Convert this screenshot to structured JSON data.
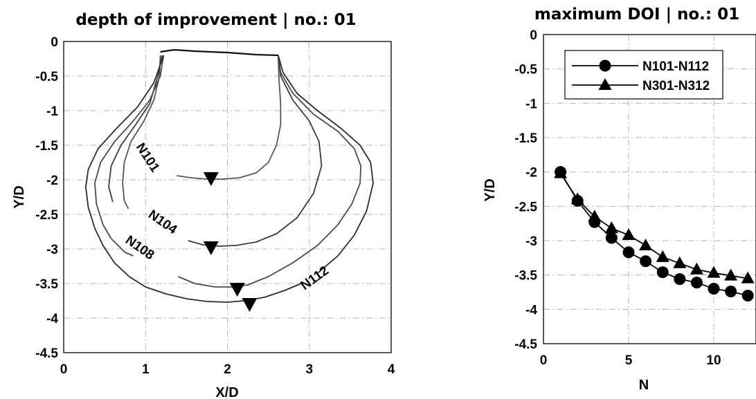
{
  "chart_data": [
    {
      "type": "line",
      "title": "depth of improvement | no.: 01",
      "xlabel": "X/D",
      "ylabel": "Y/D",
      "xlim": [
        0,
        4
      ],
      "ylim": [
        -4.5,
        0
      ],
      "xticks": [
        "0",
        "1",
        "2",
        "3",
        "4"
      ],
      "yticks": [
        "0",
        "-0.5",
        "-1",
        "-1.5",
        "-2",
        "-2.5",
        "-3",
        "-3.5",
        "-4",
        "-4.5"
      ],
      "grid": true,
      "top_line": [
        [
          1.18,
          -0.15
        ],
        [
          1.35,
          -0.12
        ],
        [
          1.6,
          -0.14
        ],
        [
          2.0,
          -0.16
        ],
        [
          2.35,
          -0.19
        ],
        [
          2.62,
          -0.2
        ]
      ],
      "series": [
        {
          "name": "N101",
          "color": "#555555",
          "x": [
            1.18,
            1.17,
            1.1,
            0.98,
            0.82,
            0.74,
            0.72,
            0.74,
            0.79
          ],
          "y": [
            -0.2,
            -0.5,
            -0.85,
            -1.15,
            -1.45,
            -1.75,
            -2.05,
            -2.3,
            -2.42
          ],
          "x2": [
            1.38,
            1.55,
            1.75,
            1.95,
            2.15,
            2.35,
            2.5,
            2.6,
            2.65,
            2.65,
            2.63,
            2.62
          ],
          "y2": [
            -1.94,
            -1.97,
            -1.99,
            -1.99,
            -1.97,
            -1.9,
            -1.75,
            -1.5,
            -1.2,
            -0.9,
            -0.55,
            -0.2
          ],
          "min": {
            "x": 1.8,
            "y": -2.0
          }
        },
        {
          "name": "N104",
          "color": "#3a3a3a",
          "x": [
            1.2,
            1.15,
            1.05,
            0.88,
            0.7,
            0.58,
            0.55,
            0.6
          ],
          "y": [
            -0.2,
            -0.5,
            -0.9,
            -1.2,
            -1.5,
            -1.8,
            -2.1,
            -2.32
          ],
          "x2": [
            1.52,
            1.7,
            1.9,
            2.1,
            2.35,
            2.6,
            2.85,
            3.05,
            3.15,
            3.12,
            3.0,
            2.8,
            2.65,
            2.62
          ],
          "y2": [
            -2.88,
            -2.94,
            -2.96,
            -2.95,
            -2.9,
            -2.78,
            -2.55,
            -2.2,
            -1.8,
            -1.45,
            -1.15,
            -0.85,
            -0.5,
            -0.2
          ],
          "min": {
            "x": 1.8,
            "y": -3.0
          }
        },
        {
          "name": "N108",
          "color": "#4a4a4a",
          "x": [
            1.22,
            1.18,
            1.05,
            0.85,
            0.62,
            0.45,
            0.38,
            0.4,
            0.48,
            0.58,
            0.75,
            0.85
          ],
          "y": [
            -0.2,
            -0.5,
            -0.85,
            -1.15,
            -1.45,
            -1.75,
            -2.05,
            -2.35,
            -2.65,
            -2.85,
            -3.05,
            -3.1
          ],
          "x2": [
            1.4,
            1.6,
            1.85,
            2.05,
            2.25,
            2.5,
            2.8,
            3.1,
            3.35,
            3.52,
            3.62,
            3.63,
            3.55,
            3.35,
            3.05,
            2.8,
            2.65,
            2.62
          ],
          "y2": [
            -3.4,
            -3.5,
            -3.55,
            -3.55,
            -3.52,
            -3.4,
            -3.2,
            -2.95,
            -2.65,
            -2.35,
            -2.05,
            -1.8,
            -1.55,
            -1.3,
            -1.05,
            -0.75,
            -0.45,
            -0.2
          ],
          "min": {
            "x": 2.12,
            "y": -3.6
          }
        },
        {
          "name": "N112",
          "color": "#2a2a2a",
          "x": [
            1.22,
            1.1,
            0.9,
            0.65,
            0.42,
            0.3,
            0.27,
            0.3,
            0.38,
            0.48,
            0.62,
            0.8,
            1.0,
            1.25,
            1.5,
            1.75,
            2.0,
            2.2,
            2.45,
            2.7,
            2.9
          ],
          "y": [
            -0.2,
            -0.6,
            -0.95,
            -1.25,
            -1.55,
            -1.85,
            -2.1,
            -2.4,
            -2.7,
            -2.95,
            -3.2,
            -3.4,
            -3.55,
            -3.65,
            -3.72,
            -3.76,
            -3.77,
            -3.75,
            -3.7,
            -3.6,
            -3.5
          ],
          "x2": [
            3.1,
            3.35,
            3.55,
            3.7,
            3.78,
            3.75,
            3.62,
            3.38,
            3.1,
            2.85,
            2.68,
            2.62
          ],
          "y2": [
            -3.35,
            -3.1,
            -2.8,
            -2.45,
            -2.05,
            -1.75,
            -1.5,
            -1.25,
            -1.0,
            -0.75,
            -0.45,
            -0.2
          ],
          "min": {
            "x": 2.27,
            "y": -3.82
          }
        }
      ],
      "curve_labels": [
        "N101",
        "N104",
        "N108",
        "N112"
      ]
    },
    {
      "type": "line",
      "title": "maximum DOI | no.: 01",
      "xlabel": "N",
      "ylabel": "Y/D",
      "xlim": [
        0,
        12
      ],
      "ylim": [
        -4.5,
        0
      ],
      "xticks": [
        "0",
        "5",
        "10"
      ],
      "yticks": [
        "0",
        "-0.5",
        "-1",
        "-1.5",
        "-2",
        "-2.5",
        "-3",
        "-3.5",
        "-4",
        "-4.5"
      ],
      "grid": true,
      "legend_position": "top-right",
      "x": [
        1,
        2,
        3,
        4,
        5,
        6,
        7,
        8,
        9,
        10,
        11,
        12
      ],
      "series": [
        {
          "name": "N101-N112",
          "marker": "circle",
          "values": [
            -2.0,
            -2.42,
            -2.73,
            -2.96,
            -3.17,
            -3.3,
            -3.46,
            -3.56,
            -3.61,
            -3.7,
            -3.74,
            -3.8
          ]
        },
        {
          "name": "N301-N312",
          "marker": "triangle",
          "values": [
            -2.02,
            -2.4,
            -2.65,
            -2.82,
            -2.92,
            -3.07,
            -3.24,
            -3.33,
            -3.42,
            -3.47,
            -3.51,
            -3.55
          ]
        }
      ]
    }
  ]
}
